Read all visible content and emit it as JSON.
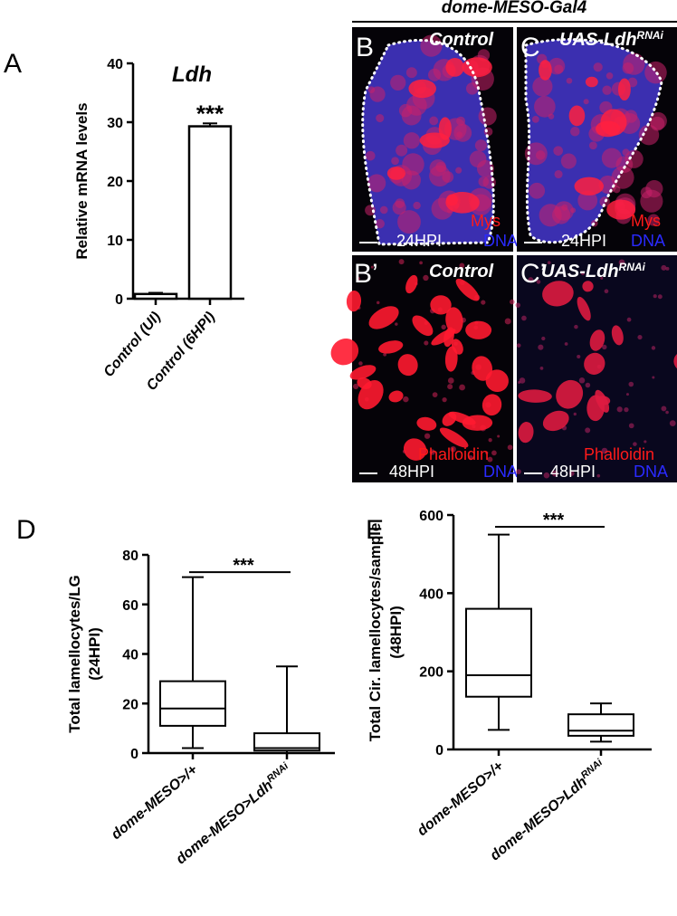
{
  "chart_data": [
    {
      "type": "bar",
      "panel_label": "A",
      "title": "Ldh",
      "ylabel": [
        "Relative mRNA levels"
      ],
      "categories": [
        "Control (UI)",
        "Control (6HPI)"
      ],
      "values": [
        0.8,
        29.3
      ],
      "errors": [
        0.2,
        0.5
      ],
      "color": "#ffffff",
      "ylim": [
        0,
        40
      ],
      "yticks": [
        0,
        10,
        20,
        30,
        40
      ],
      "annotations": [
        {
          "text": "***",
          "category": 1
        }
      ]
    },
    {
      "type": "box",
      "panel_label": "D",
      "ylabel": [
        "Total lamellocytes/LG",
        "(24HPI)"
      ],
      "categories": [
        "dome-MESO>/+",
        "dome-MESO>Ldh"
      ],
      "category_superscripts": [
        null,
        "RNAi"
      ],
      "boxes": [
        {
          "min": 2,
          "q1": 11,
          "median": 18,
          "q3": 29,
          "max": 71
        },
        {
          "min": 0,
          "q1": 1,
          "median": 2,
          "q3": 8,
          "max": 35
        }
      ],
      "ylim": [
        0,
        80
      ],
      "yticks": [
        0,
        20,
        40,
        60,
        80
      ],
      "significance": {
        "text": "***",
        "y": 73
      }
    },
    {
      "type": "box",
      "panel_label": "E",
      "ylabel": [
        "Total Cir. lamellocytes/sample",
        "(48HPI)"
      ],
      "categories": [
        "dome-MESO>/+",
        "dome-MESO>Ldh"
      ],
      "category_superscripts": [
        null,
        "RNAi"
      ],
      "boxes": [
        {
          "min": 50,
          "q1": 135,
          "median": 190,
          "q3": 360,
          "max": 550
        },
        {
          "min": 20,
          "q1": 35,
          "median": 48,
          "q3": 90,
          "max": 118
        }
      ],
      "ylim": [
        0,
        600
      ],
      "yticks": [
        0,
        200,
        400,
        600
      ],
      "significance": {
        "text": "***",
        "y": 570
      }
    }
  ],
  "images": {
    "title": "dome-MESO-Gal4",
    "panels": [
      {
        "label": "B",
        "title": "Control",
        "stain": "Mys",
        "time": "24HPI",
        "dna": "DNA"
      },
      {
        "label": "C",
        "title": "UAS-Ldh",
        "title_sup": "RNAi",
        "stain": "Mys",
        "time": "24HPI",
        "dna": "DNA"
      },
      {
        "label": "B’",
        "title": "Control",
        "stain": "Phalloidin",
        "time": "48HPI",
        "dna": "DNA"
      },
      {
        "label": "C’",
        "title": "UAS-Ldh",
        "title_sup": "RNAi",
        "stain": "Phalloidin",
        "time": "48HPI",
        "dna": "DNA"
      }
    ]
  }
}
